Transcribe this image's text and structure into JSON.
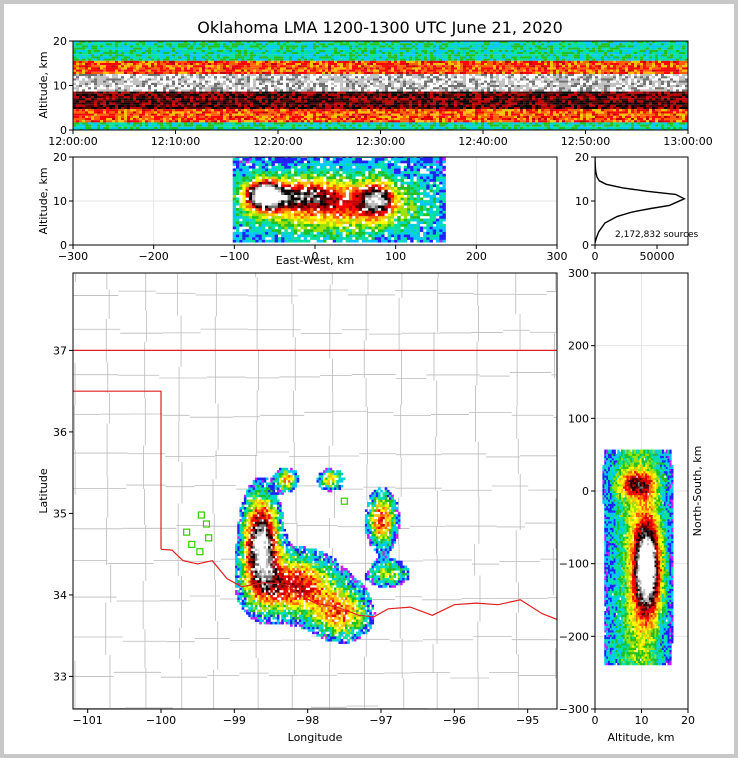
{
  "chart_data": [
    {
      "type": "heatmap",
      "name": "time-height",
      "title": "Oklahoma LMA 1200-1300 UTC June 21, 2020",
      "xlabel": "",
      "ylabel": "Altitude, km",
      "xlim": [
        "12:00:00",
        "13:00:00"
      ],
      "xticks": [
        "12:00:00",
        "12:10:00",
        "12:20:00",
        "12:30:00",
        "12:40:00",
        "12:50:00",
        "13:00:00"
      ],
      "ylim": [
        0,
        20
      ],
      "yticks": [
        0,
        10,
        20
      ],
      "bands": [
        {
          "alt_min": 0,
          "alt_max": 2,
          "density": "low"
        },
        {
          "alt_min": 2,
          "alt_max": 5,
          "density": "high"
        },
        {
          "alt_min": 5,
          "alt_max": 9,
          "density": "very-high"
        },
        {
          "alt_min": 9,
          "alt_max": 13,
          "density": "peak"
        },
        {
          "alt_min": 13,
          "alt_max": 16,
          "density": "high"
        },
        {
          "alt_min": 16,
          "alt_max": 20,
          "density": "low"
        }
      ]
    },
    {
      "type": "heatmap",
      "name": "east-west-altitude",
      "xlabel": "East-West, km",
      "ylabel": "Altitude, km",
      "xlim": [
        -300,
        300
      ],
      "xticks": [
        -300,
        -200,
        -100,
        0,
        100,
        200,
        300
      ],
      "ylim": [
        0,
        20
      ],
      "yticks": [
        0,
        10,
        20
      ],
      "grid": true
    },
    {
      "type": "line",
      "name": "altitude-histogram",
      "xlim": [
        0,
        75000
      ],
      "xticks": [
        0,
        50000
      ],
      "ylim": [
        0,
        20
      ],
      "yticks": [
        0,
        10,
        20
      ],
      "annotation": "2,172,832 sources",
      "x": [
        0,
        1000,
        3000,
        8000,
        18000,
        30000,
        45000,
        60000,
        72000,
        65000,
        42000,
        22000,
        9000,
        3500,
        1500,
        700,
        300,
        100,
        0
      ],
      "y": [
        0.5,
        1.5,
        3,
        5,
        6.5,
        7.5,
        8.3,
        9,
        10.5,
        11.5,
        12.2,
        13,
        13.8,
        14.6,
        15.5,
        16.5,
        17.5,
        19,
        20
      ]
    },
    {
      "type": "heatmap",
      "name": "plan-view",
      "xlabel": "Longitude",
      "ylabel": "Latitude",
      "xlim": [
        -101.2,
        -94.6
      ],
      "xticks": [
        -101,
        -100,
        -99,
        -98,
        -97,
        -96,
        -95
      ],
      "ylim": [
        32.6,
        37.95
      ],
      "yticks": [
        33,
        34,
        35,
        36,
        37
      ],
      "border_color": "#e02020",
      "county_color": "#bbbbbb",
      "station_color": "#33cc00",
      "stations": [
        {
          "lon": -99.45,
          "lat": 34.98
        },
        {
          "lon": -99.65,
          "lat": 34.77
        },
        {
          "lon": -99.38,
          "lat": 34.87
        },
        {
          "lon": -99.35,
          "lat": 34.7
        },
        {
          "lon": -99.58,
          "lat": 34.62
        },
        {
          "lon": -99.47,
          "lat": 34.53
        },
        {
          "lon": -97.5,
          "lat": 35.15
        }
      ]
    },
    {
      "type": "heatmap",
      "name": "north-south-altitude",
      "xlabel": "Altitude, km",
      "ylabel": "North-South, km",
      "xlim": [
        0,
        20
      ],
      "xticks": [
        0,
        10,
        20
      ],
      "ylim": [
        -300,
        300
      ],
      "yticks": [
        -300,
        -200,
        -100,
        0,
        100,
        200,
        300
      ],
      "grid": true
    }
  ]
}
